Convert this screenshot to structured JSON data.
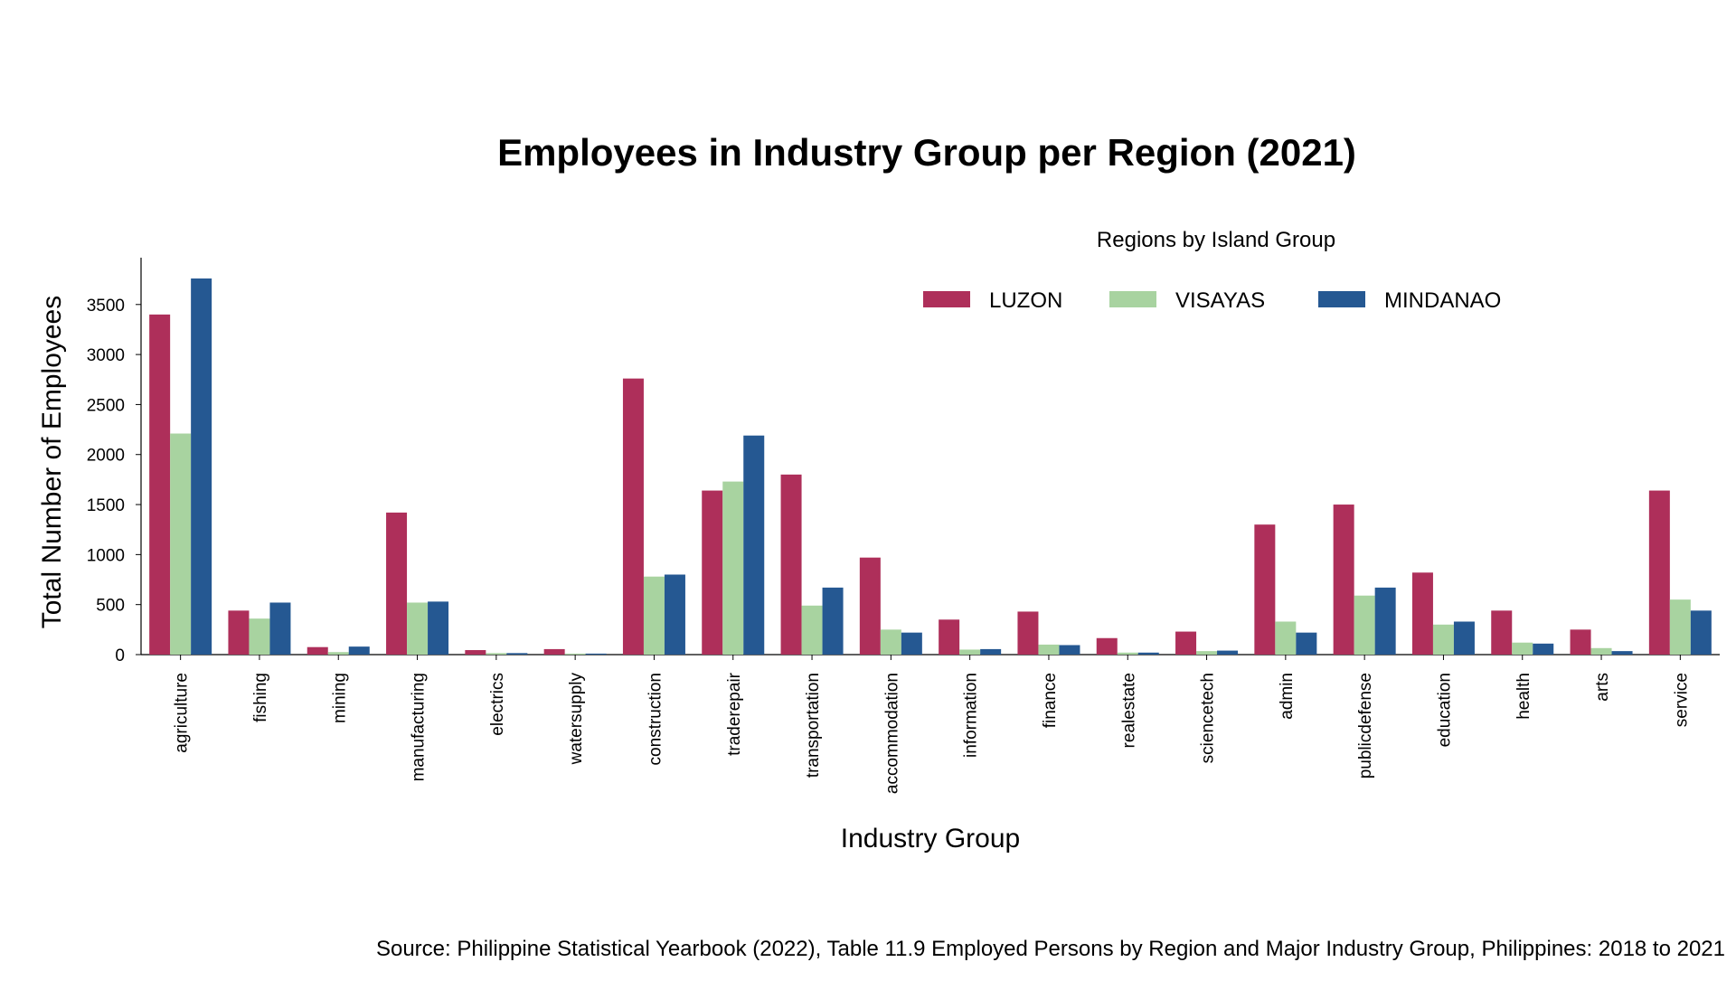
{
  "chart_data": {
    "type": "bar",
    "title": "Employees in Industry Group per Region (2021)",
    "xlabel": "Industry Group",
    "ylabel": "Total Number of Employees",
    "ylim": [
      0,
      3950
    ],
    "yticks": [
      0,
      500,
      1000,
      1500,
      2000,
      2500,
      3000,
      3500
    ],
    "grid": false,
    "legend": {
      "title": "Regions by Island Group",
      "placement": "top-right"
    },
    "categories": [
      "agriculture",
      "fishing",
      "mining",
      "manufacturing",
      "electrics",
      "watersupply",
      "construction",
      "traderepair",
      "transportation",
      "accommodation",
      "information",
      "finance",
      "realestate",
      "sciencetech",
      "admin",
      "publicdefense",
      "education",
      "health",
      "arts",
      "service"
    ],
    "series": [
      {
        "name": "LUZON",
        "color": "#ae2f5a",
        "values": [
          3400,
          440,
          75,
          1420,
          45,
          55,
          2760,
          1640,
          1800,
          970,
          350,
          430,
          165,
          230,
          1300,
          1500,
          820,
          440,
          250,
          1640
        ]
      },
      {
        "name": "VISAYAS",
        "color": "#a8d3a0",
        "values": [
          2210,
          360,
          25,
          520,
          15,
          10,
          780,
          1730,
          490,
          250,
          50,
          100,
          20,
          35,
          330,
          590,
          300,
          120,
          65,
          550
        ]
      },
      {
        "name": "MINDANAO",
        "color": "#255892",
        "values": [
          3760,
          520,
          80,
          530,
          15,
          10,
          800,
          2190,
          670,
          220,
          55,
          95,
          20,
          40,
          220,
          670,
          330,
          110,
          35,
          440
        ]
      }
    ],
    "source": "Source: Philippine Statistical Yearbook (2022), Table 11.9 Employed Persons by Region and Major Industry Group, Philippines: 2018 to 2021"
  }
}
